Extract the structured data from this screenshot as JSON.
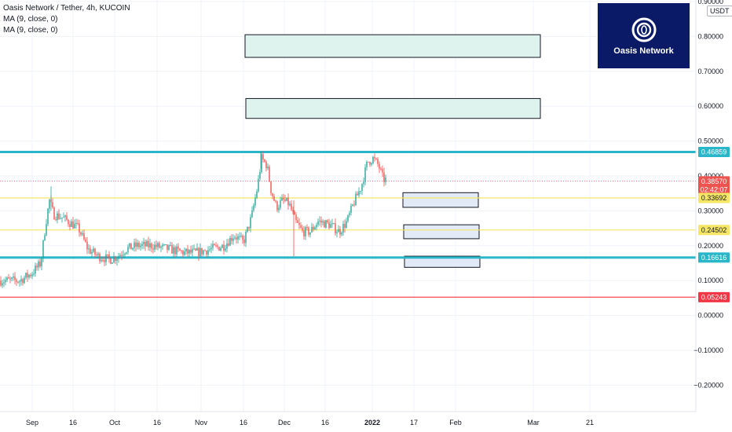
{
  "header": {
    "title": "Oasis Network / Tether, 4h, KUCOIN",
    "indicators": [
      "MA (9, close, 0)",
      "MA (9, close, 0)"
    ]
  },
  "logo": {
    "text": "Oasis Network"
  },
  "currency": "USDT",
  "colors": {
    "background": "#ffffff",
    "grid": "#f0f3fa",
    "up": "#26a69a",
    "down": "#ef5350",
    "support": "#29b6c9",
    "level": "#f5e663",
    "red_line": "#f23645",
    "zone_fill_green": "#dff3ee",
    "zone_fill_blue": "#e3eaf7",
    "logo_bg": "#0b1a66"
  },
  "chart_data": {
    "type": "candlestick",
    "title": "Oasis Network / Tether, 4h, KUCOIN",
    "y_axis": {
      "ticks": [
        "0.90000",
        "0.80000",
        "0.70000",
        "0.60000",
        "0.50000",
        "0.40000",
        "0.30000",
        "0.20000",
        "0.10000",
        "0.00000",
        "−0.10000",
        "−0.20000"
      ],
      "range": [
        -0.26,
        0.9
      ]
    },
    "x_axis": {
      "ticks": [
        "Sep",
        "16",
        "Oct",
        "16",
        "Nov",
        "16",
        "Dec",
        "16",
        "2022",
        "17",
        "Feb",
        "Mar",
        "21"
      ]
    },
    "price_path": [
      [
        0,
        0.1
      ],
      [
        25,
        0.1
      ],
      [
        40,
        0.12
      ],
      [
        52,
        0.15
      ],
      [
        58,
        0.26
      ],
      [
        63,
        0.33
      ],
      [
        68,
        0.29
      ],
      [
        80,
        0.28
      ],
      [
        100,
        0.25
      ],
      [
        112,
        0.19
      ],
      [
        125,
        0.17
      ],
      [
        140,
        0.16
      ],
      [
        150,
        0.17
      ],
      [
        160,
        0.19
      ],
      [
        175,
        0.2
      ],
      [
        195,
        0.2
      ],
      [
        215,
        0.19
      ],
      [
        235,
        0.18
      ],
      [
        250,
        0.18
      ],
      [
        268,
        0.19
      ],
      [
        285,
        0.2
      ],
      [
        298,
        0.23
      ],
      [
        310,
        0.21
      ],
      [
        320,
        0.28
      ],
      [
        328,
        0.37
      ],
      [
        333,
        0.45
      ],
      [
        340,
        0.43
      ],
      [
        345,
        0.36
      ],
      [
        352,
        0.31
      ],
      [
        360,
        0.33
      ],
      [
        368,
        0.32
      ],
      [
        376,
        0.27
      ],
      [
        385,
        0.24
      ],
      [
        395,
        0.24
      ],
      [
        405,
        0.27
      ],
      [
        420,
        0.26
      ],
      [
        432,
        0.24
      ],
      [
        442,
        0.27
      ],
      [
        450,
        0.32
      ],
      [
        460,
        0.37
      ],
      [
        468,
        0.44
      ],
      [
        475,
        0.45
      ],
      [
        482,
        0.43
      ],
      [
        488,
        0.39
      ],
      [
        492,
        0.39
      ]
    ],
    "levels": [
      {
        "label": "0.46859",
        "value": 0.46859,
        "type": "support-resistance"
      },
      {
        "label": "0.38570",
        "value": 0.3857,
        "type": "last-price",
        "countdown": "02:42:07"
      },
      {
        "label": "0.33692",
        "value": 0.33692,
        "type": "horizontal"
      },
      {
        "label": "0.24502",
        "value": 0.24502,
        "type": "horizontal"
      },
      {
        "label": "0.16616",
        "value": 0.16616,
        "type": "support-resistance"
      },
      {
        "label": "0.05243",
        "value": 0.05243,
        "type": "horizontal-red"
      }
    ],
    "target_zones": [
      {
        "top": 0.805,
        "bottom": 0.74,
        "kind": "upper"
      },
      {
        "top": 0.622,
        "bottom": 0.565,
        "kind": "upper"
      },
      {
        "top": 0.352,
        "bottom": 0.31,
        "kind": "lower"
      },
      {
        "top": 0.26,
        "bottom": 0.22,
        "kind": "lower"
      },
      {
        "top": 0.17,
        "bottom": 0.138,
        "kind": "lower"
      }
    ]
  }
}
